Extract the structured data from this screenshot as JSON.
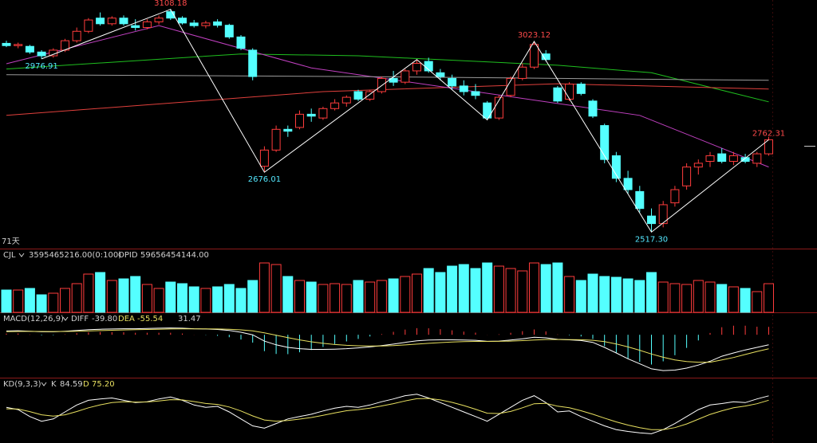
{
  "chart_data": {
    "type": "candlestick",
    "period_label": "71天",
    "ylim": [
      2480,
      3133
    ],
    "up_color": "#ff3c3c",
    "down_color": "#54ffff",
    "candles": {
      "open": [
        3018,
        3012,
        3010,
        2995,
        2985,
        3000,
        3025,
        3050,
        3085,
        3070,
        3085,
        3065,
        3060,
        3075,
        3102,
        3085,
        3072,
        3065,
        3075,
        3066,
        3035,
        3000,
        2692,
        2735,
        2790,
        2795,
        2830,
        2820,
        2845,
        2860,
        2890,
        2870,
        2890,
        2925,
        2915,
        2945,
        2970,
        2940,
        2925,
        2905,
        2890,
        2860,
        2820,
        2880,
        2925,
        2955,
        2990,
        2900,
        2870,
        2910,
        2865,
        2800,
        2720,
        2660,
        2625,
        2560,
        2540,
        2595,
        2640,
        2690,
        2705,
        2725,
        2705,
        2715,
        2700,
        2725
      ],
      "high": [
        3025,
        3020,
        3014,
        3000,
        3005,
        3030,
        3060,
        3085,
        3100,
        3090,
        3092,
        3082,
        3082,
        3092,
        3108.18,
        3090,
        3080,
        3078,
        3082,
        3070,
        3040,
        3005,
        2745,
        2800,
        2800,
        2840,
        2845,
        2850,
        2870,
        2880,
        2895,
        2895,
        2930,
        2945,
        2950,
        2975,
        2980,
        2950,
        2935,
        2920,
        2910,
        2865,
        2880,
        2930,
        2965,
        3023.12,
        3000,
        2905,
        2915,
        2915,
        2870,
        2805,
        2730,
        2680,
        2640,
        2580,
        2600,
        2640,
        2700,
        2710,
        2730,
        2740,
        2730,
        2725,
        2730,
        2770
      ],
      "low": [
        3008,
        3005,
        2990,
        2976.91,
        2980,
        2995,
        3020,
        3045,
        3065,
        3065,
        3065,
        3052,
        3055,
        3068,
        3080,
        3068,
        3060,
        3058,
        3060,
        3030,
        3000,
        2920,
        2676.01,
        2730,
        2770,
        2790,
        2810,
        2815,
        2840,
        2850,
        2865,
        2865,
        2885,
        2905,
        2910,
        2935,
        2940,
        2920,
        2895,
        2880,
        2870,
        2815,
        2815,
        2875,
        2920,
        2950,
        2970,
        2860,
        2865,
        2880,
        2820,
        2700,
        2650,
        2620,
        2570,
        2517.3,
        2530,
        2585,
        2630,
        2670,
        2690,
        2700,
        2695,
        2700,
        2690,
        2720
      ],
      "close": [
        3012,
        3015,
        2995,
        2985,
        3000,
        3025,
        3050,
        3080,
        3070,
        3085,
        3070,
        3060,
        3075,
        3085,
        3085,
        3072,
        3065,
        3072,
        3066,
        3035,
        3005,
        2930,
        2735,
        2790,
        2785,
        2830,
        2825,
        2845,
        2860,
        2875,
        2870,
        2890,
        2925,
        2915,
        2945,
        2965,
        2945,
        2930,
        2905,
        2890,
        2880,
        2820,
        2875,
        2925,
        2955,
        3015,
        2975,
        2865,
        2910,
        2885,
        2825,
        2710,
        2660,
        2630,
        2580,
        2540,
        2590,
        2630,
        2690,
        2700,
        2720,
        2705,
        2720,
        2705,
        2725,
        2762.31
      ]
    },
    "ma_lines": [
      {
        "color": "#1fbf1f",
        "x": [
          0,
          20,
          30,
          47,
          55,
          65
        ],
        "values": [
          2950,
          2990,
          2985,
          2960,
          2940,
          2863
        ]
      },
      {
        "color": "#e0403c",
        "x": [
          0,
          27,
          47,
          65
        ],
        "values": [
          2827,
          2890,
          2911,
          2897
        ]
      },
      {
        "color": "#c040c0",
        "x": [
          0,
          13,
          26,
          40,
          54,
          65
        ],
        "values": [
          2964,
          3065,
          2953,
          2890,
          2827,
          2690
        ]
      },
      {
        "color": "#9a9a9a",
        "x": [
          0,
          30,
          65
        ],
        "values": [
          2935,
          2930,
          2920
        ]
      }
    ],
    "zigzag": {
      "color": "#ffffff",
      "x": [
        3,
        14,
        22,
        35,
        41,
        45,
        55,
        65
      ],
      "values": [
        2976.91,
        3108.18,
        2676.01,
        2975,
        2815,
        3023.12,
        2517.3,
        2762.31
      ],
      "value_labels": [
        "2976.91",
        "3108.18",
        "2676.01",
        null,
        null,
        "3023.12",
        "2517.30",
        "2762.31"
      ]
    },
    "volume": {
      "label": "CJL",
      "readout": "3595465216.00(0:100)",
      "extra_name": "OPID",
      "extra_value": "59656454144.00",
      "ylim": [
        0,
        7000000000
      ],
      "values": [
        2800000000,
        2800000000,
        3000000000,
        2200000000,
        2400000000,
        3000000000,
        3600000000,
        4800000000,
        5000000000,
        4000000000,
        4200000000,
        4500000000,
        3500000000,
        3000000000,
        3800000000,
        3600000000,
        3200000000,
        3000000000,
        3200000000,
        3500000000,
        3000000000,
        4000000000,
        6200000000,
        6000000000,
        4500000000,
        4000000000,
        3800000000,
        3500000000,
        3600000000,
        3500000000,
        4000000000,
        3800000000,
        4000000000,
        4200000000,
        4500000000,
        4800000000,
        5500000000,
        5000000000,
        5800000000,
        6000000000,
        5500000000,
        6200000000,
        5800000000,
        5500000000,
        5200000000,
        6200000000,
        6000000000,
        6200000000,
        4500000000,
        4000000000,
        4800000000,
        4500000000,
        4400000000,
        4200000000,
        4000000000,
        5000000000,
        3800000000,
        3600000000,
        3500000000,
        4000000000,
        3800000000,
        3500000000,
        3200000000,
        3000000000,
        2600000000,
        3595465216
      ]
    },
    "macd": {
      "label": "MACD(12,26,9)",
      "diff_name": "DIFF",
      "diff_readout": "-39.80",
      "dea_name": "DEA",
      "dea_readout": "-55.54",
      "hist_readout": "31.47",
      "ylim": [
        -170,
        70
      ],
      "diff": [
        15,
        16,
        14,
        12,
        12,
        14,
        17,
        20,
        22,
        23,
        24,
        24,
        25,
        26,
        27,
        26,
        24,
        23,
        21,
        17,
        10,
        0,
        -25,
        -40,
        -50,
        -55,
        -58,
        -58,
        -57,
        -55,
        -52,
        -48,
        -43,
        -37,
        -30,
        -24,
        -21,
        -20,
        -20,
        -21,
        -22,
        -26,
        -25,
        -21,
        -16,
        -10,
        -12,
        -18,
        -20,
        -23,
        -30,
        -50,
        -72,
        -95,
        -115,
        -135,
        -142,
        -140,
        -132,
        -120,
        -105,
        -85,
        -72,
        -60,
        -50,
        -39.8
      ],
      "dea": [
        12.6,
        13.3,
        13.4,
        13.1,
        12.9,
        13.1,
        13.9,
        15.1,
        16.5,
        17.8,
        19,
        20,
        21,
        22,
        23,
        23.6,
        23.7,
        23.6,
        23,
        21.8,
        19.5,
        15.6,
        7.5,
        -2,
        -11.6,
        -20.3,
        -27.8,
        -33.9,
        -38.5,
        -41.8,
        -43.8,
        -44.7,
        -44.3,
        -42.9,
        -40.3,
        -37,
        -33.8,
        -31.1,
        -28.9,
        -27.3,
        -26.2,
        -26.2,
        -25.9,
        -25,
        -23.2,
        -20.5,
        -18.8,
        -18.7,
        -18.9,
        -19.7,
        -21.8,
        -27.4,
        -36.3,
        -48.1,
        -61.5,
        -76.2,
        -89.3,
        -99.5,
        -106,
        -108.8,
        -108.6,
        -100,
        -90,
        -78,
        -66,
        -55.54
      ],
      "hist": [
        4.8,
        5.4,
        1.2,
        -2.3,
        -1.8,
        1.7,
        6.2,
        9.8,
        11,
        10.4,
        9.9,
        7.9,
        8,
        8,
        8,
        4.8,
        0.6,
        -1.1,
        -4.1,
        -9.7,
        -18.9,
        -31.1,
        -64.9,
        -76,
        -76.8,
        -69.4,
        -60.3,
        -48.3,
        -37,
        -26.4,
        -16.3,
        -6.7,
        2.7,
        11.7,
        20.6,
        26.1,
        25.7,
        22.1,
        17.7,
        12.6,
        8.4,
        0.4,
        1.9,
        7.9,
        14.3,
        21.1,
        13.6,
        1.3,
        -2.1,
        -6.5,
        -16.4,
        -45.1,
        -71.3,
        -93.9,
        -107.1,
        -117.7,
        -105.3,
        -81.1,
        -52,
        -22.4,
        7.2,
        30,
        36,
        36,
        32,
        31.47
      ]
    },
    "kd": {
      "label": "KD(9,3,3)",
      "k_name": "K",
      "k_readout": "84.59",
      "d_name": "D",
      "d_readout": "75.20",
      "ylim": [
        -10,
        110
      ],
      "k": [
        60,
        55,
        40,
        30,
        35,
        50,
        65,
        75,
        78,
        80,
        75,
        70,
        72,
        78,
        82,
        75,
        65,
        60,
        62,
        50,
        35,
        20,
        15,
        25,
        35,
        40,
        45,
        52,
        58,
        62,
        60,
        65,
        72,
        78,
        85,
        88,
        80,
        70,
        60,
        50,
        40,
        30,
        45,
        60,
        75,
        85,
        70,
        50,
        52,
        40,
        30,
        20,
        12,
        8,
        5,
        3,
        12,
        25,
        40,
        55,
        65,
        68,
        72,
        70,
        78,
        84.59
      ],
      "d": [
        56.7,
        56.1,
        50.7,
        43.8,
        40.9,
        43.9,
        50.9,
        58.9,
        65.3,
        70.2,
        71.8,
        71.2,
        71.5,
        73.6,
        76.4,
        75.9,
        72.3,
        68.2,
        66.1,
        60.7,
        52.1,
        41.4,
        32.6,
        30.1,
        31.7,
        34.5,
        38,
        42.7,
        47.8,
        52.5,
        55,
        58.3,
        62.9,
        67.9,
        73.6,
        78.4,
        78.9,
        75.9,
        70.6,
        63.7,
        55.8,
        47.2,
        46.5,
        51,
        59,
        67.7,
        68.5,
        62.3,
        58.9,
        52.6,
        45.1,
        36.7,
        28.5,
        21.7,
        16.1,
        11.7,
        11.8,
        16.2,
        24.1,
        34.4,
        44.6,
        52.4,
        58.9,
        62.6,
        67.7,
        75.2
      ]
    }
  }
}
